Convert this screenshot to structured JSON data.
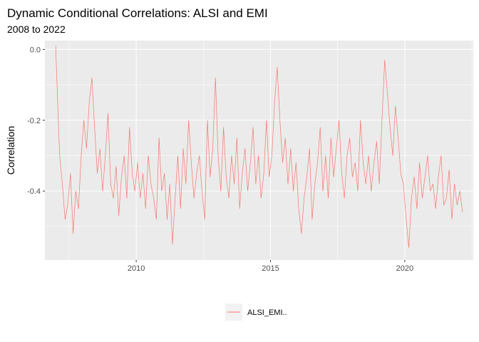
{
  "chart_data": {
    "type": "line",
    "title": "Dynamic Conditional Correlations: ALSI and EMI",
    "subtitle": "2008 to 2022",
    "xlabel": "",
    "ylabel": "Correlation",
    "xlim": [
      2006.6,
      2022.55
    ],
    "ylim": [
      -0.595,
      0.025
    ],
    "x_ticks": [
      2010,
      2015,
      2020
    ],
    "x_tick_labels": [
      "2010",
      "2015",
      "2020"
    ],
    "y_ticks": [
      0.0,
      -0.2,
      -0.4
    ],
    "y_tick_labels": [
      "0.0",
      "-0.2",
      "-0.4"
    ],
    "grid": true,
    "legend_position": "bottom",
    "colors": {
      "series": "#F8766D",
      "panel": "#EBEBEB",
      "grid": "#FFFFFF"
    },
    "series": [
      {
        "name": "ALSI_EMI..",
        "x": [
          2007.0,
          2007.05,
          2007.1,
          2007.15,
          2007.25,
          2007.35,
          2007.45,
          2007.55,
          2007.65,
          2007.75,
          2007.85,
          2007.95,
          2008.05,
          2008.15,
          2008.25,
          2008.35,
          2008.45,
          2008.55,
          2008.65,
          2008.75,
          2008.85,
          2008.95,
          2009.05,
          2009.15,
          2009.25,
          2009.35,
          2009.45,
          2009.55,
          2009.65,
          2009.75,
          2009.85,
          2009.95,
          2010.05,
          2010.15,
          2010.25,
          2010.35,
          2010.45,
          2010.55,
          2010.65,
          2010.75,
          2010.85,
          2010.95,
          2011.05,
          2011.15,
          2011.25,
          2011.35,
          2011.45,
          2011.55,
          2011.65,
          2011.75,
          2011.85,
          2011.95,
          2012.05,
          2012.15,
          2012.25,
          2012.35,
          2012.45,
          2012.55,
          2012.65,
          2012.75,
          2012.85,
          2012.95,
          2013.05,
          2013.15,
          2013.25,
          2013.35,
          2013.45,
          2013.55,
          2013.65,
          2013.75,
          2013.85,
          2013.95,
          2014.05,
          2014.15,
          2014.25,
          2014.35,
          2014.45,
          2014.55,
          2014.65,
          2014.75,
          2014.85,
          2014.95,
          2015.05,
          2015.15,
          2015.25,
          2015.35,
          2015.45,
          2015.55,
          2015.65,
          2015.75,
          2015.85,
          2015.95,
          2016.05,
          2016.15,
          2016.25,
          2016.35,
          2016.45,
          2016.55,
          2016.65,
          2016.75,
          2016.85,
          2016.95,
          2017.05,
          2017.15,
          2017.25,
          2017.35,
          2017.45,
          2017.55,
          2017.65,
          2017.75,
          2017.85,
          2017.95,
          2018.05,
          2018.15,
          2018.25,
          2018.35,
          2018.45,
          2018.55,
          2018.65,
          2018.75,
          2018.85,
          2018.95,
          2019.05,
          2019.15,
          2019.25,
          2019.35,
          2019.45,
          2019.55,
          2019.65,
          2019.75,
          2019.85,
          2019.95,
          2020.05,
          2020.15,
          2020.25,
          2020.35,
          2020.45,
          2020.55,
          2020.65,
          2020.75,
          2020.85,
          2020.95,
          2021.05,
          2021.15,
          2021.25,
          2021.35,
          2021.45,
          2021.55,
          2021.65,
          2021.75,
          2021.85,
          2021.95,
          2022.05,
          2022.15
        ],
        "values": [
          0.01,
          -0.1,
          -0.2,
          -0.3,
          -0.38,
          -0.48,
          -0.44,
          -0.35,
          -0.52,
          -0.4,
          -0.45,
          -0.3,
          -0.2,
          -0.28,
          -0.15,
          -0.08,
          -0.22,
          -0.35,
          -0.28,
          -0.4,
          -0.3,
          -0.18,
          -0.38,
          -0.42,
          -0.33,
          -0.47,
          -0.36,
          -0.3,
          -0.42,
          -0.22,
          -0.35,
          -0.4,
          -0.32,
          -0.42,
          -0.35,
          -0.45,
          -0.3,
          -0.38,
          -0.42,
          -0.48,
          -0.25,
          -0.4,
          -0.35,
          -0.48,
          -0.38,
          -0.55,
          -0.42,
          -0.3,
          -0.45,
          -0.28,
          -0.38,
          -0.2,
          -0.32,
          -0.42,
          -0.35,
          -0.3,
          -0.4,
          -0.48,
          -0.2,
          -0.36,
          -0.28,
          -0.08,
          -0.3,
          -0.4,
          -0.22,
          -0.36,
          -0.42,
          -0.3,
          -0.38,
          -0.25,
          -0.45,
          -0.35,
          -0.28,
          -0.4,
          -0.32,
          -0.22,
          -0.38,
          -0.3,
          -0.42,
          -0.35,
          -0.2,
          -0.36,
          -0.3,
          -0.15,
          -0.05,
          -0.2,
          -0.32,
          -0.25,
          -0.38,
          -0.28,
          -0.4,
          -0.32,
          -0.45,
          -0.52,
          -0.42,
          -0.36,
          -0.28,
          -0.48,
          -0.38,
          -0.32,
          -0.22,
          -0.4,
          -0.3,
          -0.42,
          -0.25,
          -0.36,
          -0.28,
          -0.2,
          -0.35,
          -0.42,
          -0.3,
          -0.25,
          -0.36,
          -0.32,
          -0.4,
          -0.2,
          -0.32,
          -0.38,
          -0.3,
          -0.4,
          -0.32,
          -0.26,
          -0.38,
          -0.2,
          -0.03,
          -0.12,
          -0.22,
          -0.3,
          -0.16,
          -0.25,
          -0.35,
          -0.38,
          -0.48,
          -0.56,
          -0.42,
          -0.36,
          -0.45,
          -0.32,
          -0.42,
          -0.36,
          -0.3,
          -0.4,
          -0.38,
          -0.45,
          -0.36,
          -0.3,
          -0.44,
          -0.42,
          -0.34,
          -0.48,
          -0.38,
          -0.44,
          -0.4,
          -0.46
        ]
      }
    ]
  }
}
